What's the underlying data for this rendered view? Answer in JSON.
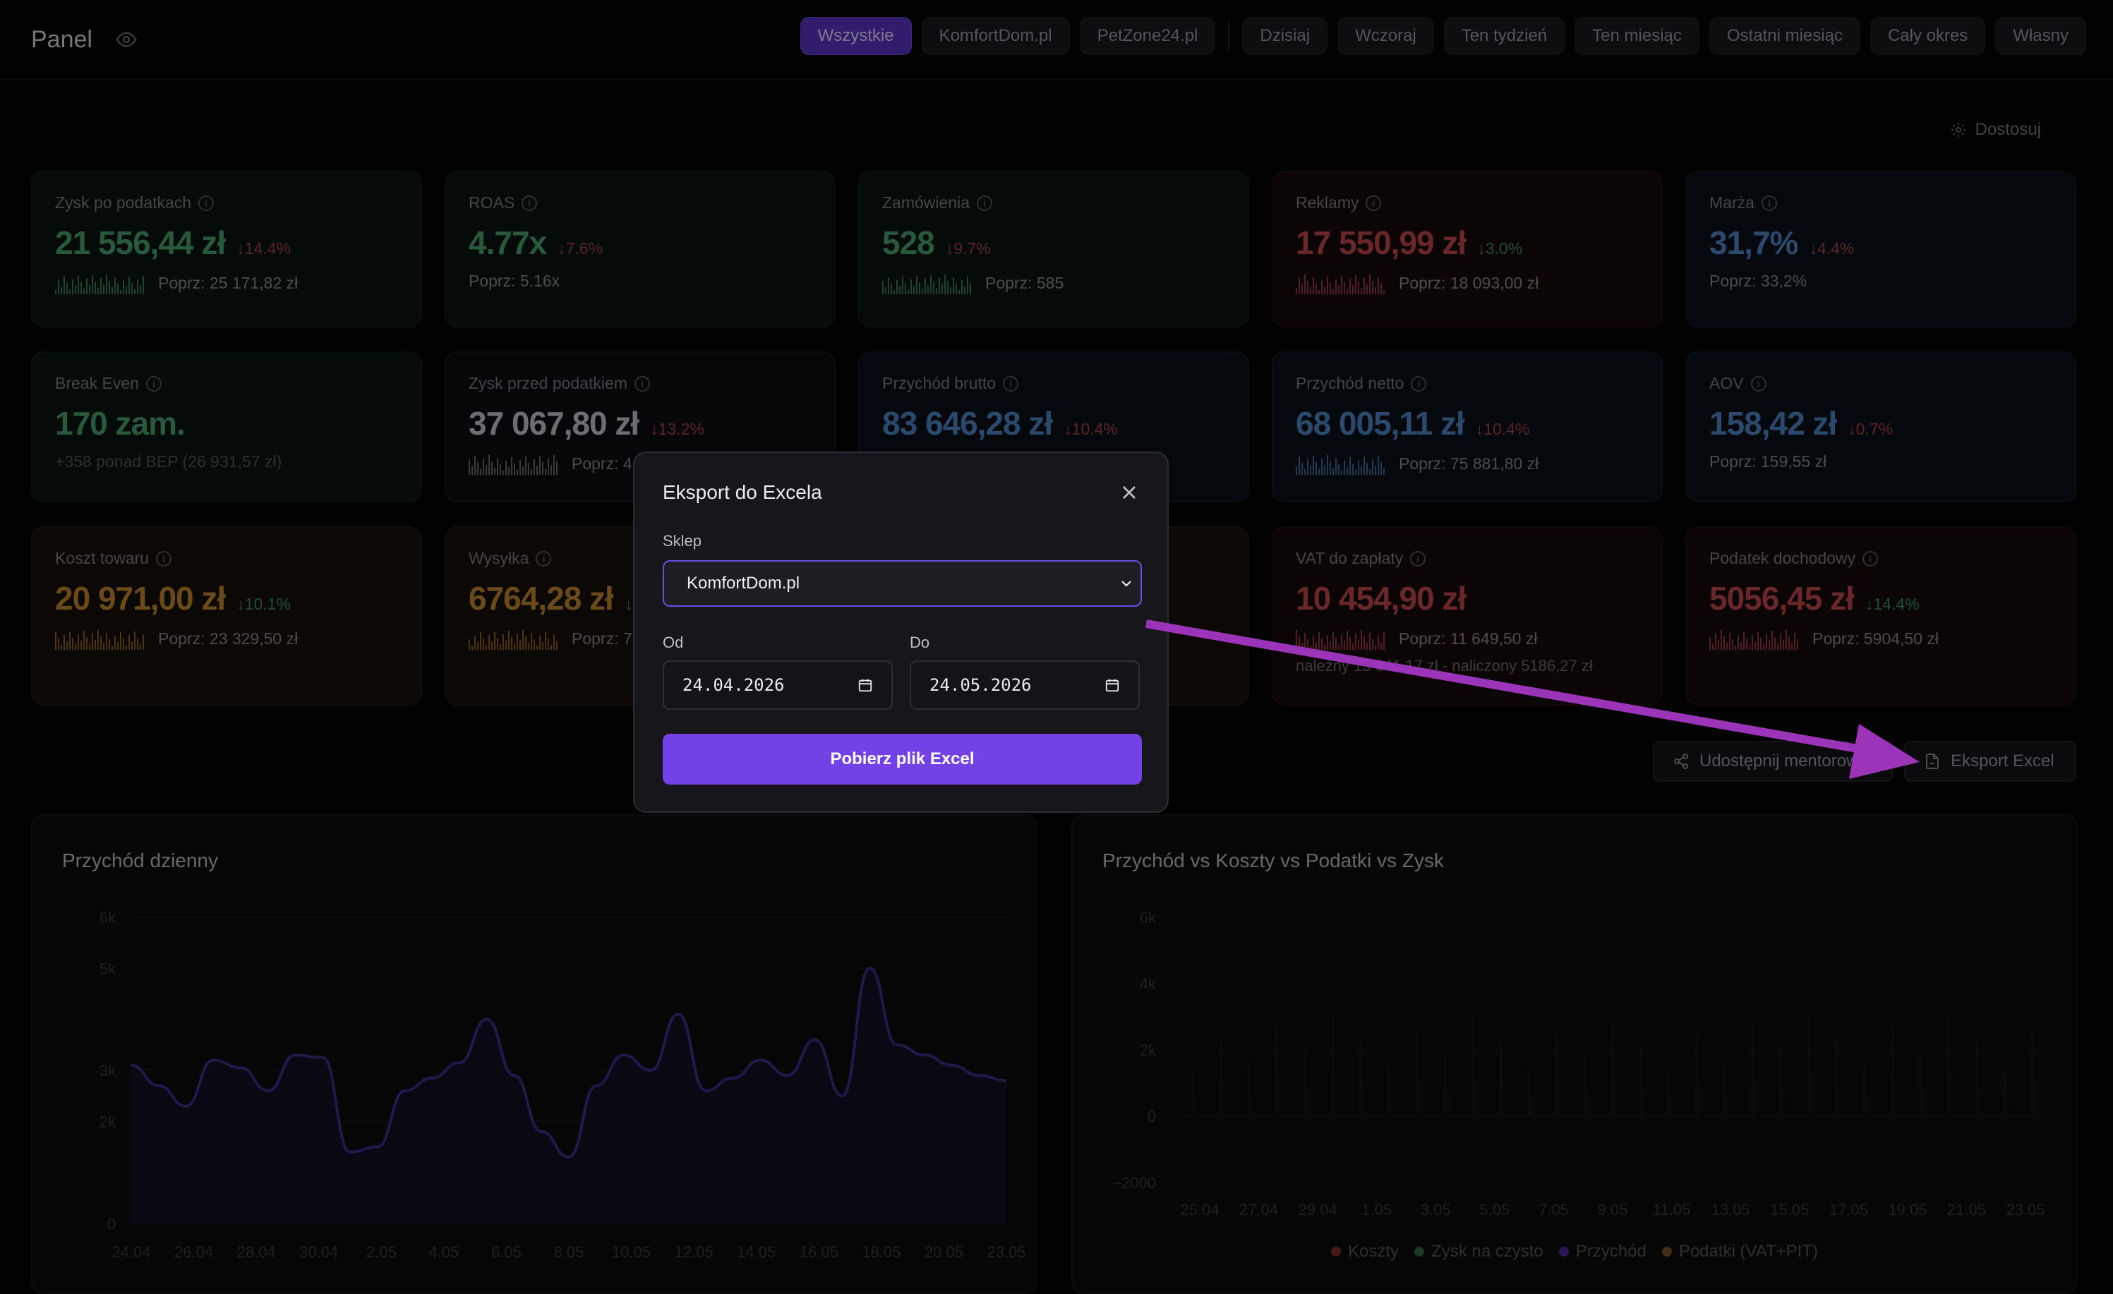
{
  "header": {
    "title": "Panel",
    "filters": [
      "Wszystkie",
      "KomfortDom.pl",
      "PetZone24.pl"
    ],
    "periods": [
      "Dzisiaj",
      "Wczoraj",
      "Ten tydzień",
      "Ten miesiąc",
      "Ostatni miesiąc",
      "Cały okres",
      "Własny"
    ]
  },
  "customize": "Dostosuj",
  "cards": {
    "c1": {
      "label": "Zysk po podatkach",
      "value": "21 556,44 zł",
      "change": "↓14.4%",
      "prev": "Poprz: 25 171,82 zł"
    },
    "c2": {
      "label": "ROAS",
      "value": "4.77x",
      "change": "↓7.6%",
      "prev": "Poprz: 5.16x"
    },
    "c3": {
      "label": "Zamówienia",
      "value": "528",
      "change": "↓9.7%",
      "prev": "Poprz: 585"
    },
    "c4": {
      "label": "Reklamy",
      "value": "17 550,99 zł",
      "change": "↓3.0%",
      "prev": "Poprz: 18 093,00 zł"
    },
    "c5": {
      "label": "Marża",
      "value": "31,7%",
      "change": "↓4.4%",
      "prev": "Poprz: 33,2%"
    },
    "c6": {
      "label": "Break Even",
      "value": "170 zam.",
      "change": "",
      "prev": "+358 ponad BEP (26 931,57 zł)"
    },
    "c7": {
      "label": "Zysk przed podatkiem",
      "value": "37 067,80 zł",
      "change": "↓13.2%",
      "prev": "Poprz: 4"
    },
    "c8": {
      "label": "Przychód brutto",
      "value": "83 646,28 zł",
      "change": "↓10.4%",
      "prev": ""
    },
    "c9": {
      "label": "Przychód netto",
      "value": "68 005,11 zł",
      "change": "↓10.4%",
      "prev": "Poprz: 75 881,80 zł"
    },
    "c10": {
      "label": "AOV",
      "value": "158,42 zł",
      "change": "↓0.7%",
      "prev": "Poprz: 159,55 zł"
    },
    "c11": {
      "label": "Koszt towaru",
      "value": "20 971,00 zł",
      "change": "↓10.1%",
      "prev": "Poprz: 23 329,50 zł"
    },
    "c12": {
      "label": "Wysyłka",
      "value": "6764,28 zł",
      "change": "↓",
      "prev": "Poprz: 7"
    },
    "c13": {
      "label": "VAT do zapłaty",
      "value": "10 454,90 zł",
      "change": "",
      "prev": "Poprz: 11 649,50 zł",
      "extra": "należny 15 641,17 zł - naliczony 5186,27 zł"
    },
    "c14": {
      "label": "Podatek dochodowy",
      "value": "5056,45 zł",
      "change": "↓14.4%",
      "prev": "Poprz: 5904,50 zł"
    }
  },
  "actions": {
    "share": "Udostępnij mentorowi",
    "export": "Eksport Excel"
  },
  "modal": {
    "title": "Eksport do Excela",
    "shop_label": "Sklep",
    "shop_value": "KomfortDom.pl",
    "from_label": "Od",
    "from_value": "24.04.2026",
    "to_label": "Do",
    "to_value": "24.05.2026",
    "download": "Pobierz plik Excel"
  },
  "colors": {
    "accent": "#7441e6",
    "arrow": "#9b34b8",
    "line": "#3d2c8a"
  },
  "chart_data": [
    {
      "type": "area",
      "title": "Przychód dzienny",
      "ylim": [
        0,
        6000
      ],
      "yticks": [
        "0",
        "2k",
        "3k",
        "5k",
        "6k"
      ],
      "ytick_values": [
        0,
        2000,
        3000,
        5000,
        6000
      ],
      "xticks": [
        "24.04",
        "26.04",
        "28.04",
        "30.04",
        "2.05",
        "4.05",
        "6.05",
        "8.05",
        "10.05",
        "12.05",
        "14.05",
        "16.05",
        "18.05",
        "20.05",
        "23.05"
      ],
      "values": [
        3100,
        2700,
        2300,
        3200,
        3050,
        2600,
        3300,
        3250,
        1400,
        1500,
        2600,
        2850,
        3150,
        4000,
        2900,
        1800,
        1300,
        2700,
        3300,
        3000,
        4100,
        2600,
        2850,
        3200,
        2900,
        3600,
        2500,
        5000,
        3500,
        3300,
        3100,
        2900,
        2800
      ]
    },
    {
      "type": "bar",
      "title": "Przychód vs Koszty vs Podatki vs Zysk",
      "ylim": [
        -2000,
        6000
      ],
      "yticks": [
        "−2000",
        "0",
        "2k",
        "4k",
        "6k"
      ],
      "ytick_values": [
        -2000,
        0,
        2000,
        4000,
        6000
      ],
      "xticks": [
        "25.04",
        "27.04",
        "29.04",
        "1.05",
        "3.05",
        "5.05",
        "7.05",
        "9.05",
        "11.05",
        "13.05",
        "15.05",
        "17.05",
        "19.05",
        "21.05",
        "23.05"
      ],
      "series": [
        {
          "name": "Koszty",
          "color": "#c2474d"
        },
        {
          "name": "Zysk na czysto",
          "color": "#4aa36d"
        },
        {
          "name": "Przychód",
          "color": "#7441e6"
        },
        {
          "name": "Podatki (VAT+PIT)",
          "color": "#c4872f"
        }
      ]
    }
  ]
}
